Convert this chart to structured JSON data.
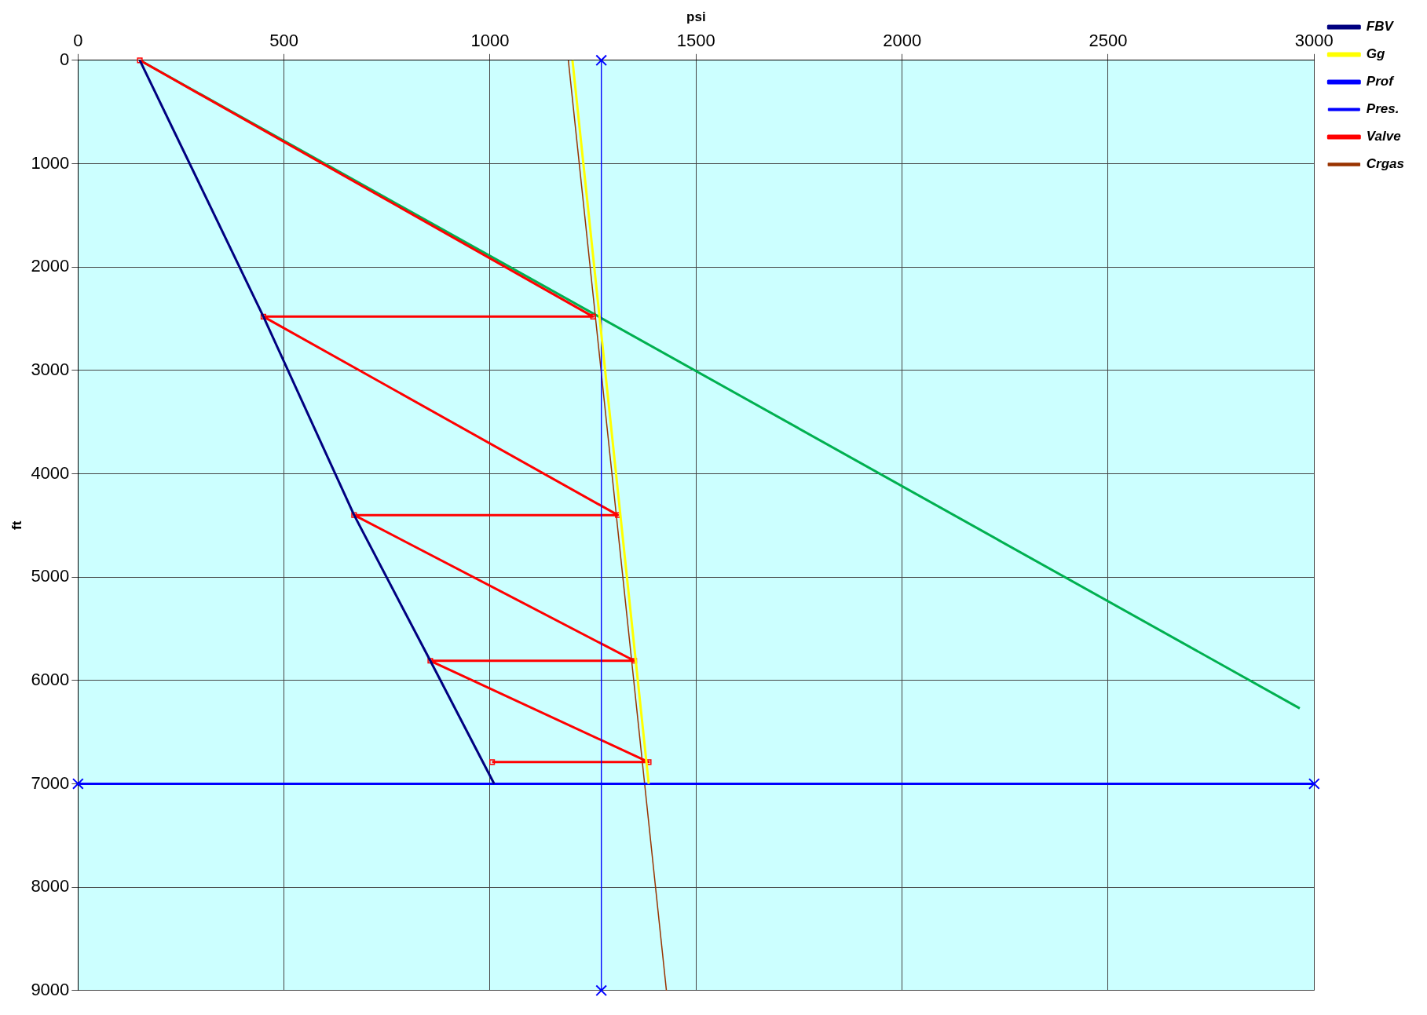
{
  "chart_data": {
    "type": "line",
    "xlabel": "psi",
    "ylabel": "ft",
    "xlim": [
      0,
      3000
    ],
    "xticks": [
      0,
      500,
      1000,
      1500,
      2000,
      2500,
      3000
    ],
    "ylim": [
      9000,
      0
    ],
    "yticks": [
      0,
      1000,
      2000,
      3000,
      4000,
      5000,
      6000,
      7000,
      8000,
      9000
    ],
    "grid": true,
    "legend": "top right",
    "line_style": "solid",
    "series": [
      {
        "name": "FBV",
        "color": "#000080",
        "marker": "none",
        "x": [
          150,
          450,
          670,
          855,
          1010
        ],
        "values": [
          0,
          2480,
          4400,
          5810,
          7000
        ]
      },
      {
        "name": "Gg",
        "color": "#ffff00",
        "marker": "none",
        "x": [
          1200,
          1385
        ],
        "values": [
          0,
          7000
        ]
      },
      {
        "name": "Prof",
        "color": "#0000ff",
        "marker": "cross",
        "x": [
          0,
          3000
        ],
        "values": [
          7000,
          7000
        ]
      },
      {
        "name": "Pres.",
        "color": "#0000ff",
        "marker": "cross",
        "x": [
          1270,
          1270
        ],
        "values": [
          0,
          9000
        ]
      },
      {
        "name": "Valve",
        "color": "#ff0000",
        "marker": "square",
        "x": [
          150,
          1250,
          450,
          1310,
          670,
          1350,
          855,
          1385,
          1005
        ],
        "values": [
          0,
          2480,
          2480,
          4400,
          4400,
          5810,
          5810,
          6790,
          6790
        ]
      },
      {
        "name": "Crgas",
        "color": "#993300",
        "marker": "none",
        "x": [
          1190,
          1428
        ],
        "values": [
          0,
          9000
        ]
      },
      {
        "color": "#00b050",
        "marker": "none",
        "x": [
          150,
          2965
        ],
        "values": [
          0,
          6270
        ]
      }
    ]
  }
}
